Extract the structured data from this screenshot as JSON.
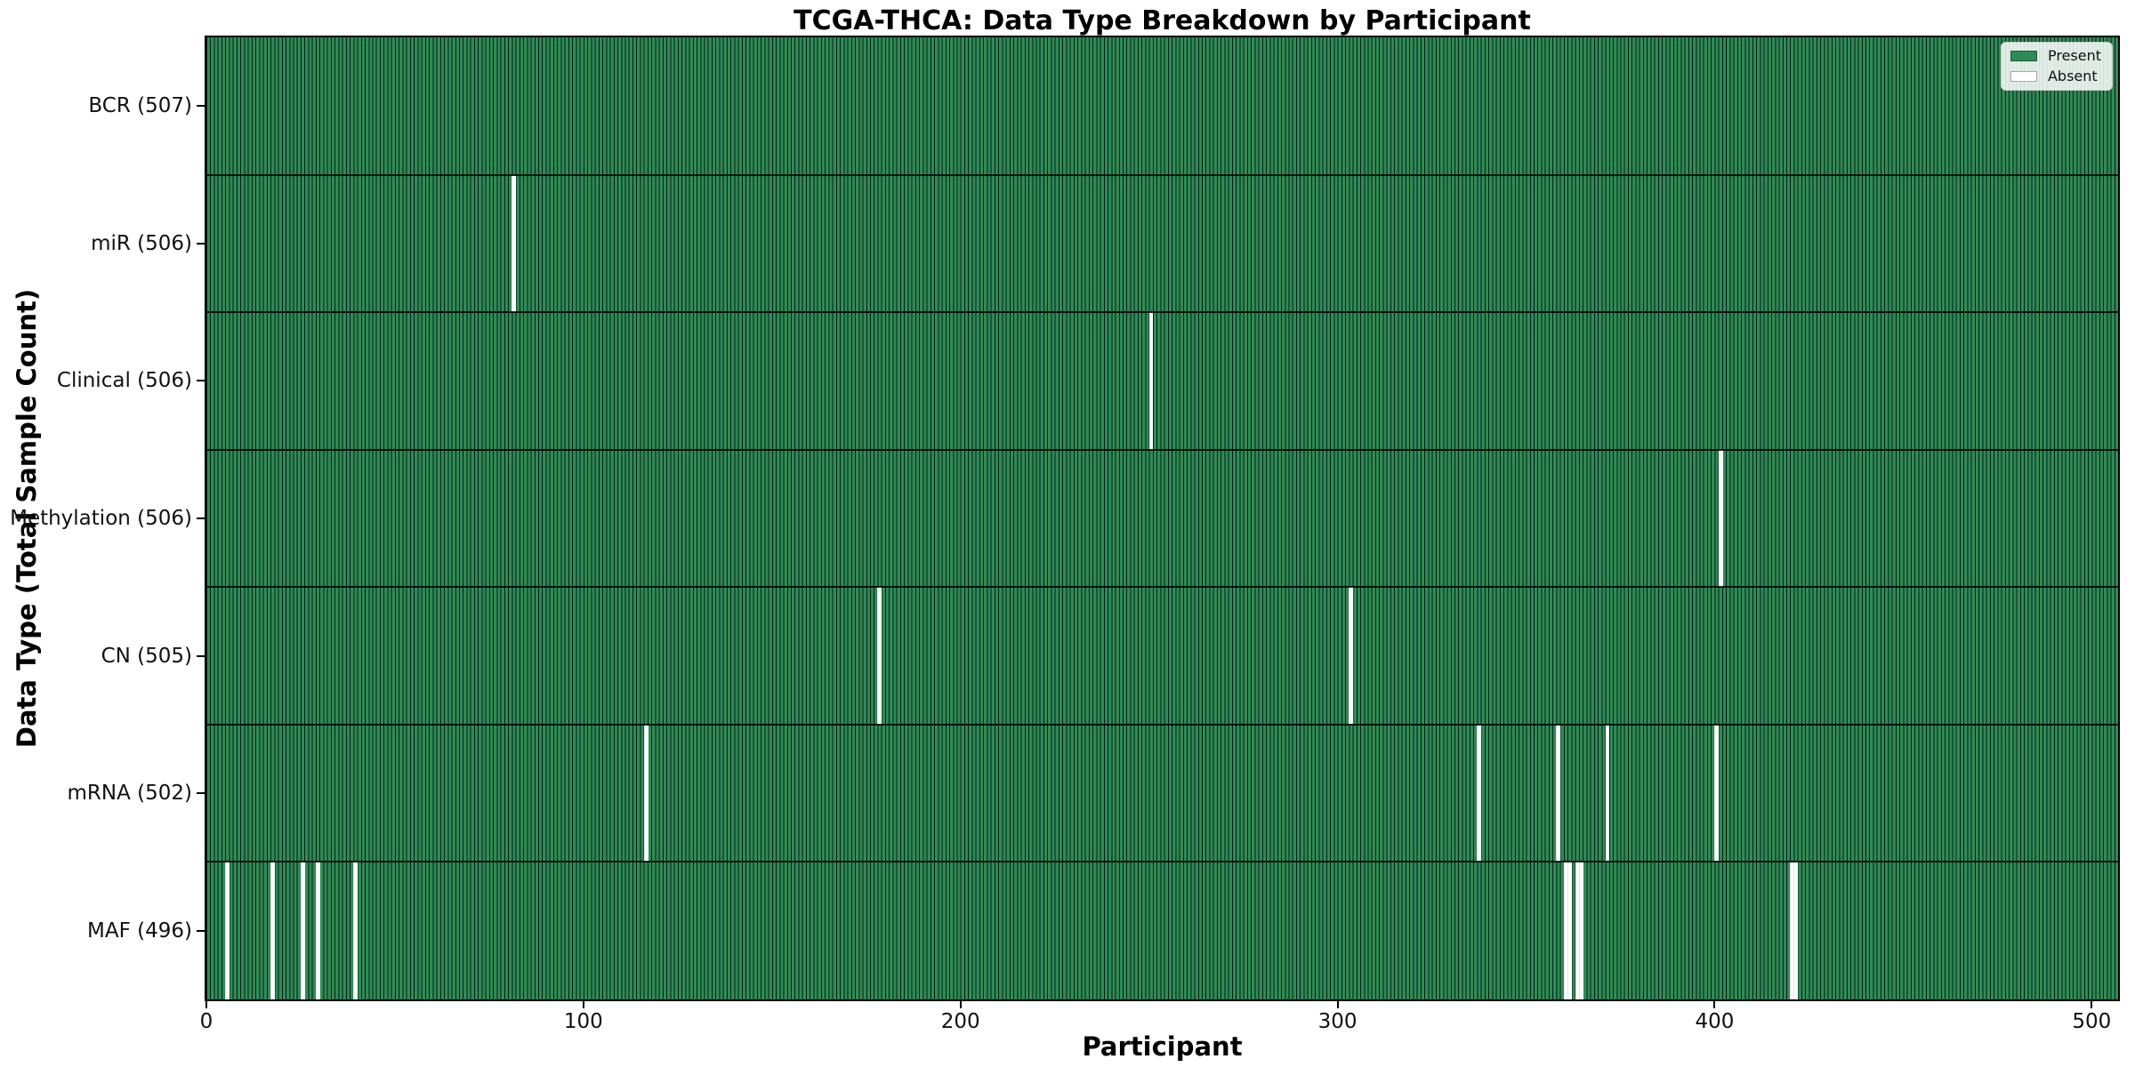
{
  "chart_data": {
    "type": "heatmap",
    "title": "TCGA-THCA: Data Type Breakdown by Participant",
    "xlabel": "Participant",
    "ylabel": "Data Type (Total Sample Count)",
    "total_participants": 507,
    "x_ticks": [
      0,
      100,
      200,
      300,
      400,
      500
    ],
    "grid": false,
    "legend_position": "upper right",
    "legend": {
      "entries": [
        {
          "label": "Present",
          "color": "#2e8b57"
        },
        {
          "label": "Absent",
          "color": "#ffffff"
        }
      ]
    },
    "colors": {
      "present": "#2e8b57",
      "absent": "#ffffff",
      "bar_edge": "rgba(0,0,0,0.78)"
    },
    "rows": [
      {
        "name": "BCR",
        "label": "BCR (507)",
        "present_count": 507,
        "absent_participants": []
      },
      {
        "name": "miR",
        "label": "miR (506)",
        "present_count": 506,
        "absent_participants": [
          81
        ]
      },
      {
        "name": "Clinical",
        "label": "Clinical (506)",
        "present_count": 506,
        "absent_participants": [
          250
        ]
      },
      {
        "name": "Methylation",
        "label": "Methylation (506)",
        "present_count": 506,
        "absent_participants": [
          401
        ]
      },
      {
        "name": "CN",
        "label": "CN (505)",
        "present_count": 505,
        "absent_participants": [
          178,
          303
        ]
      },
      {
        "name": "mRNA",
        "label": "mRNA (502)",
        "present_count": 502,
        "absent_participants": [
          116,
          337,
          358,
          371,
          400
        ]
      },
      {
        "name": "MAF",
        "label": "MAF (496)",
        "present_count": 496,
        "absent_participants": [
          5,
          17,
          25,
          29,
          39,
          360,
          361,
          363,
          364,
          420,
          421
        ]
      }
    ]
  }
}
